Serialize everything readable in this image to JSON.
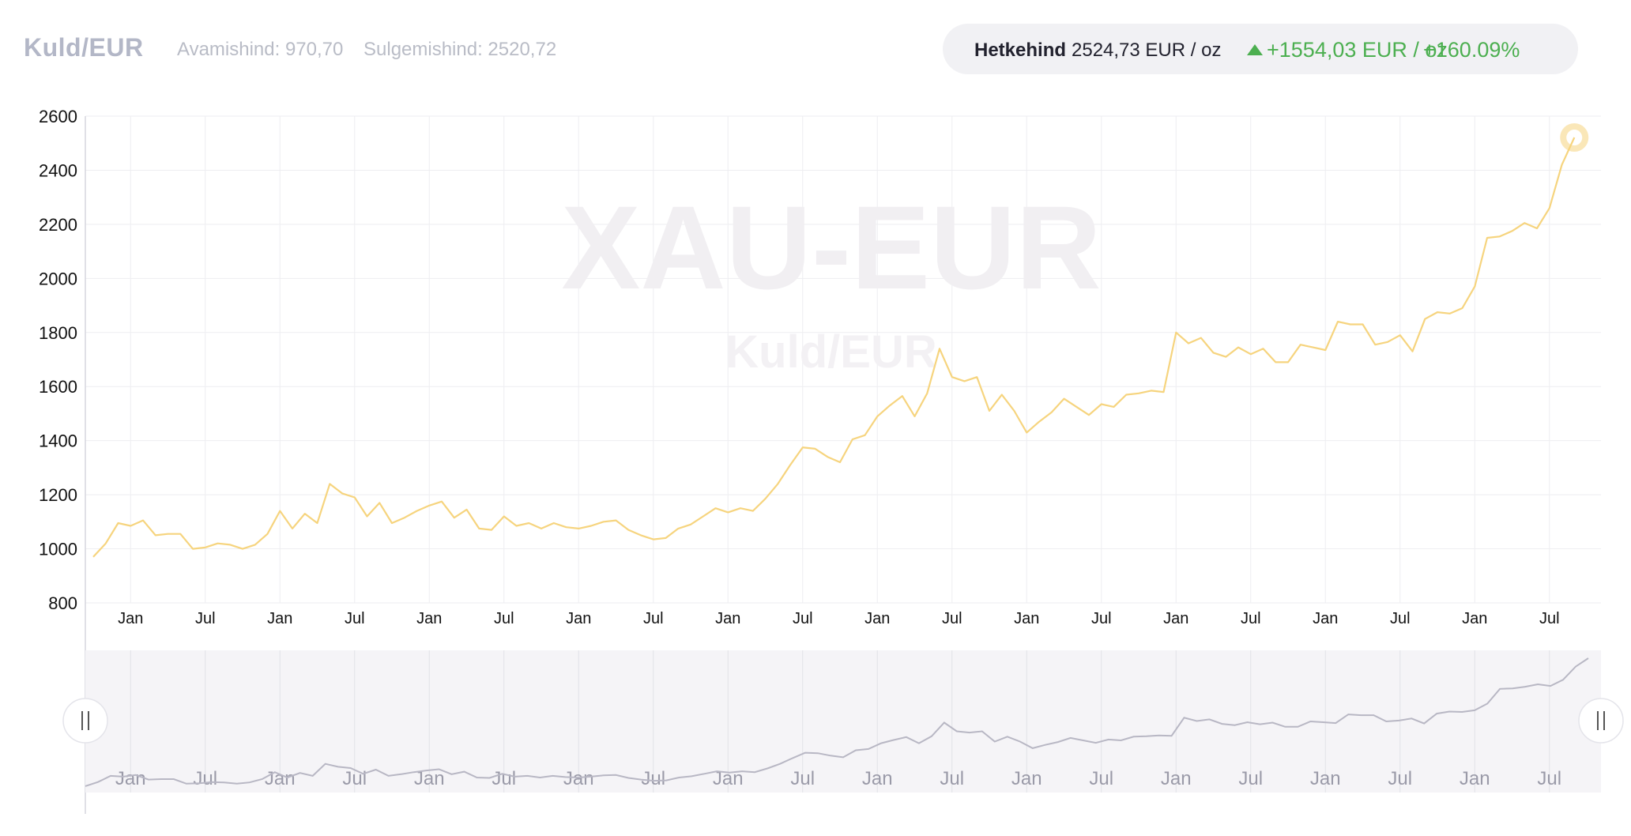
{
  "header": {
    "pair": "Kuld/EUR",
    "open_text": "Avamishind: 970,70",
    "close_text": "Sulgemishind: 2520,72",
    "current_label": "Hetkehind",
    "current_value": "2524,73 EUR / oz",
    "change_text": "+1554,03 EUR / oz",
    "change_pct": "+160.09%",
    "change_direction": "up",
    "up_color": "#4caf50"
  },
  "watermark": {
    "main": "XAU-EUR",
    "sub": "Kuld/EUR"
  },
  "navigator": {
    "left_handle_icon": "drag-handle-icon",
    "right_handle_icon": "drag-handle-icon"
  },
  "chart_data": {
    "type": "line",
    "title": "",
    "xlabel": "",
    "ylabel": "",
    "ylim": [
      800,
      2600
    ],
    "yticks": [
      800,
      1000,
      1200,
      1400,
      1600,
      1800,
      2000,
      2200,
      2400,
      2600
    ],
    "x_range": [
      "2014-10",
      "2024-10"
    ],
    "x_tick_labels": [
      "Jan",
      "Jul",
      "Jan",
      "Jul",
      "Jan",
      "Jul",
      "Jan",
      "Jul",
      "Jan",
      "Jul",
      "Jan",
      "Jul",
      "Jan",
      "Jul",
      "Jan",
      "Jul",
      "Jan",
      "Jul",
      "Jan",
      "Jul"
    ],
    "line_color": "#f6d47e",
    "grid": true,
    "series": [
      {
        "start": "2014-10",
        "frequency": "monthly",
        "values": [
          970,
          1020,
          1095,
          1085,
          1105,
          1050,
          1055,
          1055,
          1000,
          1005,
          1020,
          1015,
          1000,
          1015,
          1055,
          1140,
          1075,
          1130,
          1095,
          1240,
          1205,
          1190,
          1120,
          1170,
          1095,
          1115,
          1140,
          1160,
          1175,
          1115,
          1145,
          1075,
          1070,
          1120,
          1085,
          1095,
          1075,
          1095,
          1080,
          1075,
          1085,
          1100,
          1105,
          1070,
          1050,
          1035,
          1040,
          1075,
          1090,
          1120,
          1150,
          1135,
          1150,
          1140,
          1185,
          1240,
          1310,
          1375,
          1370,
          1340,
          1320,
          1405,
          1420,
          1490,
          1530,
          1565,
          1490,
          1575,
          1740,
          1635,
          1620,
          1635,
          1510,
          1570,
          1510,
          1430,
          1470,
          1505,
          1555,
          1525,
          1495,
          1535,
          1525,
          1570,
          1575,
          1585,
          1580,
          1800,
          1760,
          1780,
          1725,
          1710,
          1745,
          1720,
          1740,
          1690,
          1690,
          1755,
          1745,
          1735,
          1840,
          1830,
          1830,
          1755,
          1765,
          1790,
          1730,
          1850,
          1875,
          1870,
          1890,
          1970,
          2150,
          2155,
          2175,
          2205,
          2185,
          2260,
          2420,
          2521
        ]
      }
    ]
  }
}
